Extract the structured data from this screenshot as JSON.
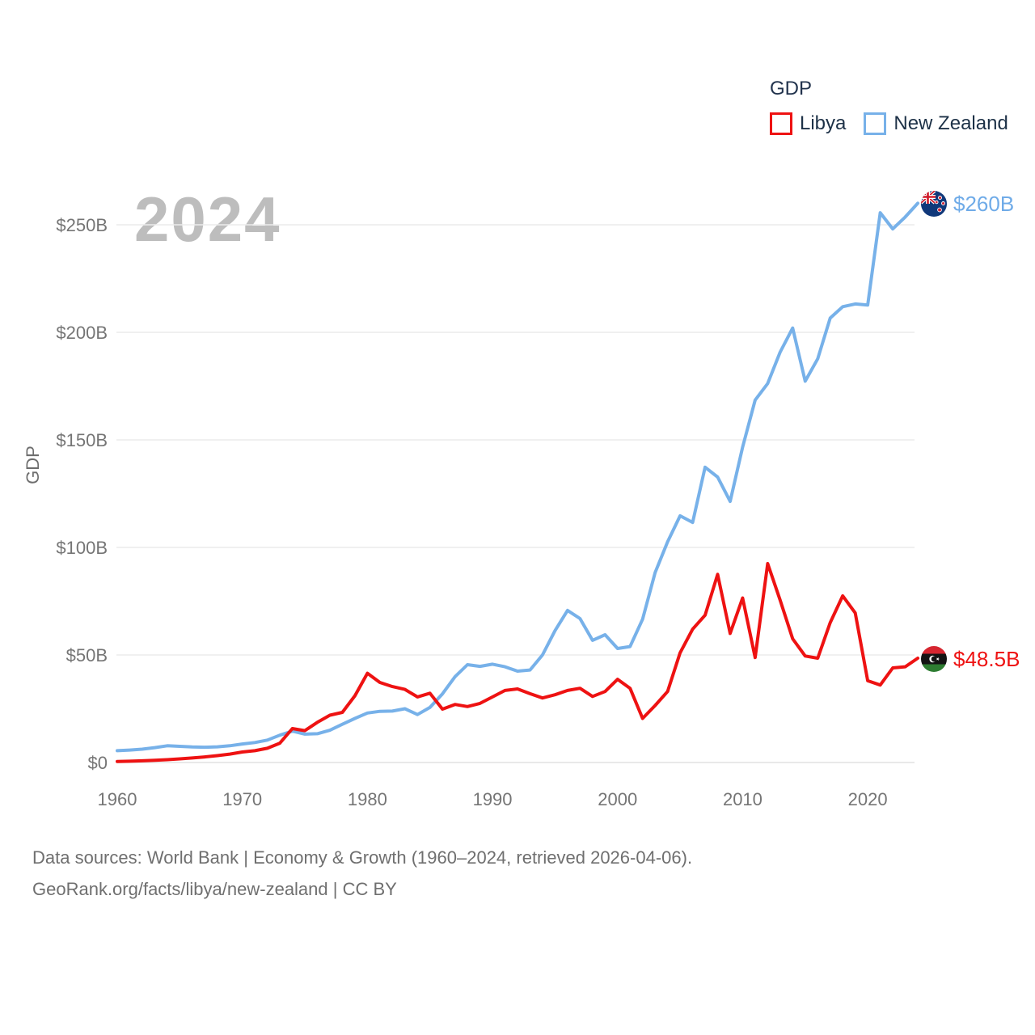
{
  "watermark": "2024",
  "legend": {
    "title": "GDP",
    "items": [
      {
        "label": "Libya",
        "color": "#ee1212"
      },
      {
        "label": "New Zealand",
        "color": "#77b1e9"
      }
    ]
  },
  "end_labels": {
    "new_zealand": "$260B",
    "libya": "$48.5B"
  },
  "footer": {
    "line1": "Data sources: World Bank | Economy & Growth (1960–2024, retrieved 2026-04-06).",
    "line2": "GeoRank.org/facts/libya/new-zealand | CC BY"
  },
  "icons": {
    "libya_flag": "libya-flag-icon",
    "new_zealand_flag": "new-zealand-flag-icon"
  },
  "colors": {
    "libya_line": "#ee1212",
    "new_zealand_line": "#77b1e9",
    "grid": "#ececec",
    "zero_line": "#e2e2e2",
    "axis_text": "#757575",
    "watermark": "#bdbdbd",
    "legend_text": "#1d3147",
    "footer_text": "#6f6f6f"
  },
  "chart_data": {
    "type": "line",
    "title": "2024",
    "legend_title": "GDP",
    "xlabel": "",
    "ylabel": "GDP",
    "grid": true,
    "legend_position": "top-right",
    "ylim": [
      0,
      265
    ],
    "x_ticks": [
      1960,
      1970,
      1980,
      1990,
      2000,
      2010,
      2020
    ],
    "y_ticks": [
      {
        "label": "$0",
        "value": 0
      },
      {
        "label": "$50B",
        "value": 50
      },
      {
        "label": "$100B",
        "value": 100
      },
      {
        "label": "$150B",
        "value": 150
      },
      {
        "label": "$200B",
        "value": 200
      },
      {
        "label": "$250B",
        "value": 250
      }
    ],
    "x": [
      1960,
      1961,
      1962,
      1963,
      1964,
      1965,
      1966,
      1967,
      1968,
      1969,
      1970,
      1971,
      1972,
      1973,
      1974,
      1975,
      1976,
      1977,
      1978,
      1979,
      1980,
      1981,
      1982,
      1983,
      1984,
      1985,
      1986,
      1987,
      1988,
      1989,
      1990,
      1991,
      1992,
      1993,
      1994,
      1995,
      1996,
      1997,
      1998,
      1999,
      2000,
      2001,
      2002,
      2003,
      2004,
      2005,
      2006,
      2007,
      2008,
      2009,
      2010,
      2011,
      2012,
      2013,
      2014,
      2015,
      2016,
      2017,
      2018,
      2019,
      2020,
      2021,
      2022,
      2023,
      2024
    ],
    "series": [
      {
        "name": "New Zealand",
        "color": "#77b1e9",
        "end_label": "$260B",
        "unit": "billion USD",
        "values": [
          5.5,
          5.8,
          6.2,
          6.9,
          7.8,
          7.5,
          7.2,
          7.1,
          7.3,
          7.8,
          8.6,
          9.3,
          10.4,
          12.7,
          14.6,
          13.2,
          13.4,
          15.0,
          17.8,
          20.5,
          23.0,
          23.8,
          23.9,
          25.0,
          22.3,
          25.6,
          31.9,
          39.9,
          45.5,
          44.7,
          45.7,
          44.5,
          42.5,
          43.0,
          50.0,
          61.3,
          70.7,
          66.9,
          56.8,
          59.4,
          53.0,
          53.9,
          66.6,
          88.3,
          102.6,
          114.7,
          111.6,
          137.3,
          132.7,
          121.4,
          146.6,
          168.5,
          176.2,
          190.8,
          202.0,
          177.3,
          187.7,
          206.6,
          211.9,
          213.2,
          212.7,
          255.6,
          248.1,
          253.6,
          260.0
        ]
      },
      {
        "name": "Libya",
        "color": "#ee1212",
        "end_label": "$48.5B",
        "unit": "billion USD",
        "values": [
          0.5,
          0.6,
          0.8,
          1.0,
          1.3,
          1.7,
          2.1,
          2.6,
          3.2,
          3.9,
          4.9,
          5.5,
          6.6,
          9.0,
          15.8,
          14.8,
          18.7,
          22.0,
          23.3,
          31.0,
          41.5,
          37.2,
          35.3,
          34.0,
          30.5,
          32.2,
          24.8,
          27.0,
          26.0,
          27.5,
          30.5,
          33.5,
          34.2,
          32.0,
          30.0,
          31.5,
          33.5,
          34.5,
          30.7,
          33.0,
          38.7,
          34.5,
          20.5,
          26.5,
          33.0,
          51.0,
          62.0,
          68.5,
          87.5,
          60.0,
          76.5,
          48.8,
          92.5,
          75.5,
          57.5,
          49.5,
          48.5,
          65.0,
          77.5,
          69.5,
          38.0,
          36.0,
          44.0,
          44.5,
          48.5
        ]
      }
    ]
  }
}
